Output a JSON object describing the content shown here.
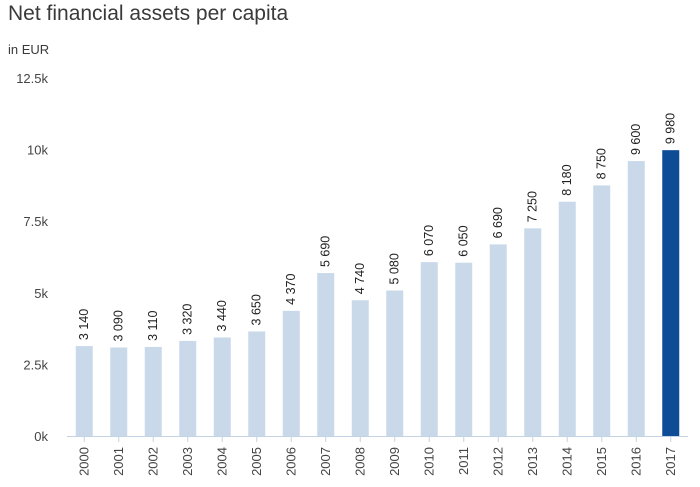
{
  "chart_data": {
    "type": "bar",
    "title": "Net financial assets per capita",
    "subtitle": "in EUR",
    "xlabel": "",
    "ylabel": "",
    "categories": [
      "2000",
      "2001",
      "2002",
      "2003",
      "2004",
      "2005",
      "2006",
      "2007",
      "2008",
      "2009",
      "2010",
      "2011",
      "2012",
      "2013",
      "2014",
      "2015",
      "2016",
      "2017"
    ],
    "values": [
      3140,
      3090,
      3110,
      3320,
      3440,
      3650,
      4370,
      5690,
      4740,
      5080,
      6070,
      6050,
      6690,
      7250,
      8180,
      8750,
      9600,
      9980
    ],
    "data_labels": [
      "3 140",
      "3 090",
      "3 110",
      "3 320",
      "3 440",
      "3 650",
      "4 370",
      "5 690",
      "4 740",
      "5 080",
      "6 070",
      "6 050",
      "6 690",
      "7 250",
      "8 180",
      "8 750",
      "9 600",
      "9 980"
    ],
    "ylim": [
      0,
      12500
    ],
    "yticks": [
      0,
      2500,
      5000,
      7500,
      10000,
      12500
    ],
    "ytick_labels": [
      "0k",
      "2.5k",
      "5k",
      "7.5k",
      "10k",
      "12.5k"
    ],
    "highlight_index": 17,
    "grid": false,
    "colors": {
      "bar": "#c9d9ea",
      "highlight": "#0f4c96",
      "axis": "#c4d3e4"
    }
  }
}
